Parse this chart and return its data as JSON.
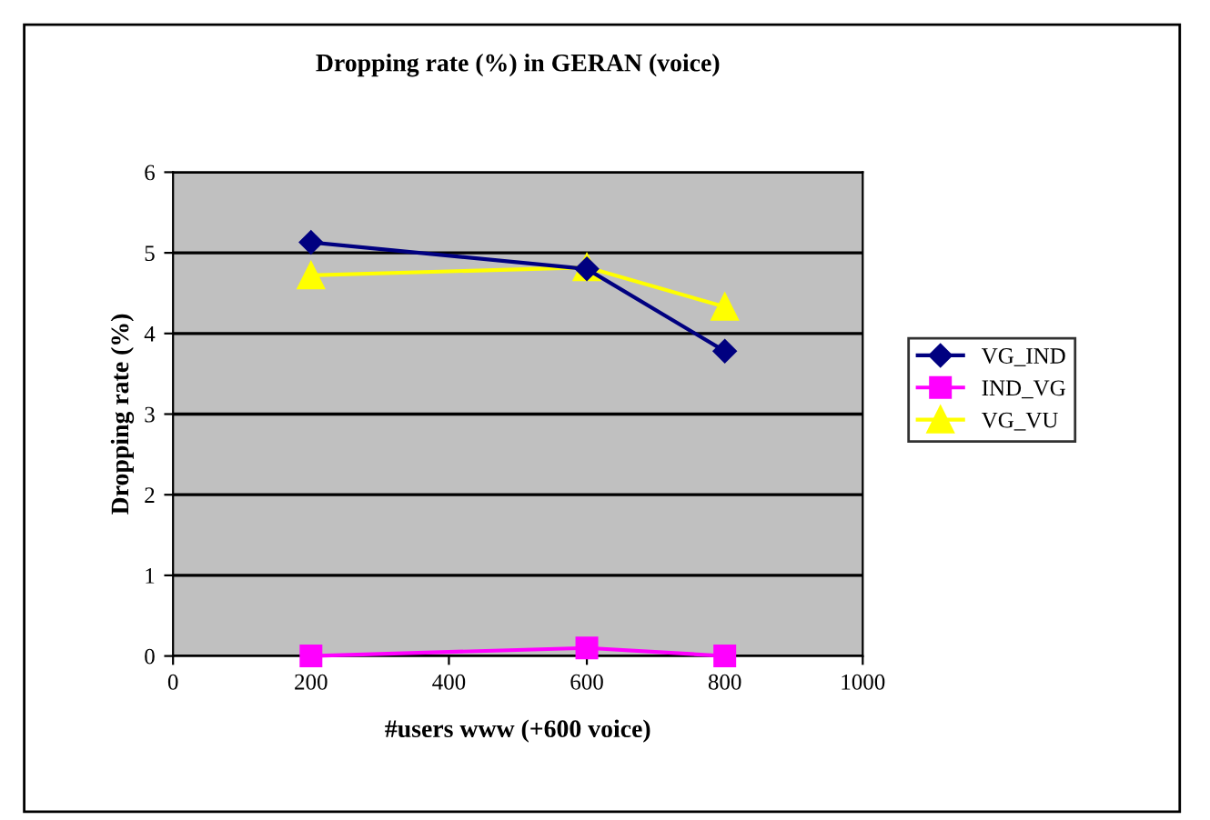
{
  "chart_data": {
    "type": "line",
    "title": "Dropping rate (%) in GERAN (voice)",
    "xlabel": "#users www (+600 voice)",
    "ylabel": "Dropping rate (%)",
    "x": [
      200,
      600,
      800
    ],
    "series": [
      {
        "name": "VG_IND",
        "color": "#000080",
        "marker": "diamond",
        "values": [
          5.13,
          4.8,
          3.78
        ]
      },
      {
        "name": "IND_VG",
        "color": "#ff00ff",
        "marker": "square",
        "values": [
          0,
          0.1,
          0
        ]
      },
      {
        "name": "VG_VU",
        "color": "#ffff00",
        "marker": "triangle",
        "values": [
          4.72,
          4.82,
          4.33
        ]
      }
    ],
    "xlim": [
      0,
      1000
    ],
    "xticks": [
      0,
      200,
      400,
      600,
      800,
      1000
    ],
    "ylim": [
      0,
      6
    ],
    "yticks": [
      0,
      1,
      2,
      3,
      4,
      5,
      6
    ],
    "grid": "y",
    "legend": "right",
    "line_style": "solid"
  }
}
